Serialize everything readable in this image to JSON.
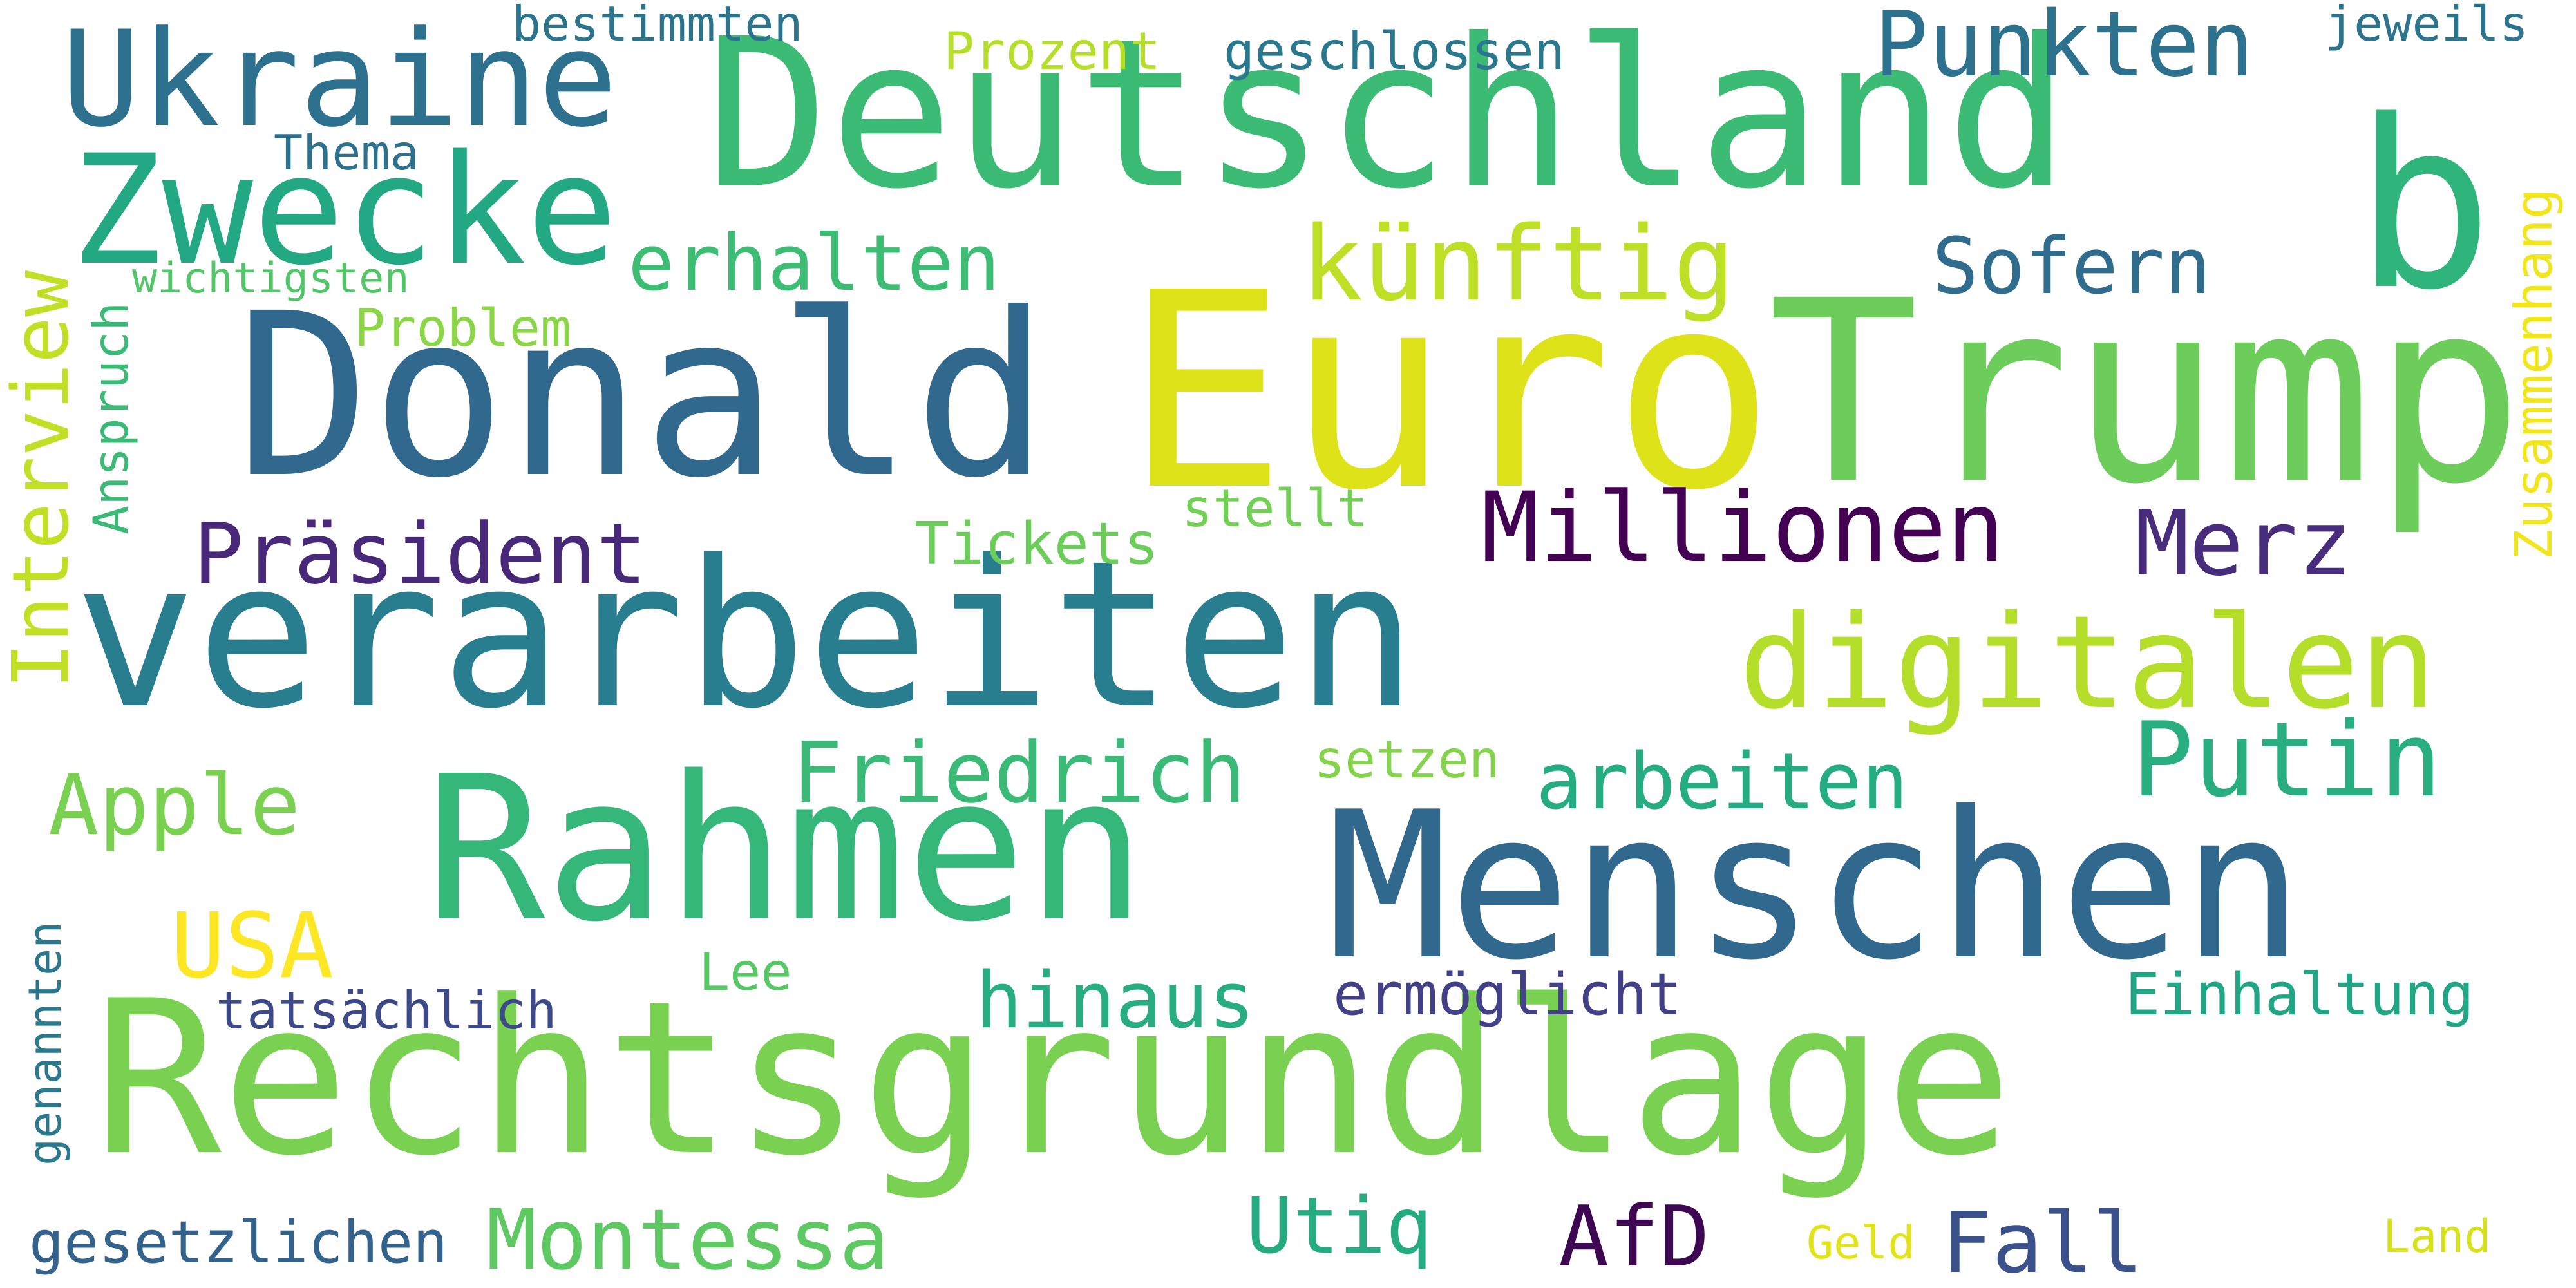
{
  "word_cloud": {
    "words": [
      {
        "id": "deutschland",
        "text": "Deutschland",
        "color": "#3cbb75"
      },
      {
        "id": "ukraine",
        "text": "Ukraine",
        "color": "#2d718e"
      },
      {
        "id": "zwecke",
        "text": "Zwecke",
        "color": "#23a884"
      },
      {
        "id": "b",
        "text": "b",
        "color": "#2fb47c"
      },
      {
        "id": "donald",
        "text": "Donald",
        "color": "#31688e"
      },
      {
        "id": "euro",
        "text": "Euro",
        "color": "#dde318"
      },
      {
        "id": "trump",
        "text": "Trump",
        "color": "#6ccd5a"
      },
      {
        "id": "verarbeiten",
        "text": "verarbeiten",
        "color": "#287d8e"
      },
      {
        "id": "rahmen",
        "text": "Rahmen",
        "color": "#35b779"
      },
      {
        "id": "menschen",
        "text": "Menschen",
        "color": "#31688e"
      },
      {
        "id": "rechtsgrundlage",
        "text": "Rechtsgrundlage",
        "color": "#7ad151"
      },
      {
        "id": "digitalen",
        "text": "digitalen",
        "color": "#b5de2b"
      },
      {
        "id": "putin",
        "text": "Putin",
        "color": "#29af7f"
      },
      {
        "id": "praesident",
        "text": "Präsident",
        "color": "#482878"
      },
      {
        "id": "millionen",
        "text": "Millionen",
        "color": "#440154"
      },
      {
        "id": "merz",
        "text": "Merz",
        "color": "#472d7b"
      },
      {
        "id": "punkten",
        "text": "Punkten",
        "color": "#2c728e"
      },
      {
        "id": "erhalten",
        "text": "erhalten",
        "color": "#3dbc74"
      },
      {
        "id": "kuenftig",
        "text": "künftig",
        "color": "#bddf26"
      },
      {
        "id": "sofern",
        "text": "Sofern",
        "color": "#2f6c8e"
      },
      {
        "id": "friedrich",
        "text": "Friedrich",
        "color": "#3aba76"
      },
      {
        "id": "arbeiten",
        "text": "arbeiten",
        "color": "#25ac82"
      },
      {
        "id": "apple",
        "text": "Apple",
        "color": "#7ad151"
      },
      {
        "id": "usa",
        "text": "USA",
        "color": "#fde725"
      },
      {
        "id": "hinaus",
        "text": "hinaus",
        "color": "#27ad81"
      },
      {
        "id": "ermoeglicht",
        "text": "ermöglicht",
        "color": "#424086"
      },
      {
        "id": "einhaltung",
        "text": "Einhaltung",
        "color": "#21a685"
      },
      {
        "id": "montessa",
        "text": "Montessa",
        "color": "#5ec962"
      },
      {
        "id": "utiq",
        "text": "Utiq",
        "color": "#25ab82"
      },
      {
        "id": "afd",
        "text": "AfD",
        "color": "#3e0751"
      },
      {
        "id": "fall",
        "text": "Fall",
        "color": "#3b518b"
      },
      {
        "id": "gesetzlichen",
        "text": "gesetzlichen",
        "color": "#33638d"
      },
      {
        "id": "tatsaechlich",
        "text": "tatsächlich",
        "color": "#3e4989"
      },
      {
        "id": "lee",
        "text": "Lee",
        "color": "#58c765"
      },
      {
        "id": "geld",
        "text": "Geld",
        "color": "#e2e418"
      },
      {
        "id": "land",
        "text": "Land",
        "color": "#d8e219"
      },
      {
        "id": "tickets",
        "text": "Tickets",
        "color": "#6ccd5a"
      },
      {
        "id": "stellt",
        "text": "stellt",
        "color": "#73d056"
      },
      {
        "id": "setzen",
        "text": "setzen",
        "color": "#84d44b"
      },
      {
        "id": "problem",
        "text": "Problem",
        "color": "#8bd646"
      },
      {
        "id": "wichtigsten",
        "text": "wichtigsten",
        "color": "#52c569"
      },
      {
        "id": "thema",
        "text": "Thema",
        "color": "#2d708e"
      },
      {
        "id": "bestimmten",
        "text": "bestimmten",
        "color": "#2c738e"
      },
      {
        "id": "prozent",
        "text": "Prozent",
        "color": "#b5de2b"
      },
      {
        "id": "geschlossen",
        "text": "geschlossen",
        "color": "#2a788e"
      },
      {
        "id": "jeweils",
        "text": "jeweils",
        "color": "#2c738e"
      },
      {
        "id": "interview",
        "text": "Interview",
        "color": "#c0df25"
      },
      {
        "id": "anspruch",
        "text": "Anspruch",
        "color": "#3aba76"
      },
      {
        "id": "zusammenhang",
        "text": "Zusammenhang",
        "color": "#f1e51d"
      },
      {
        "id": "genannten",
        "text": "genannten",
        "color": "#2a788e"
      }
    ]
  }
}
